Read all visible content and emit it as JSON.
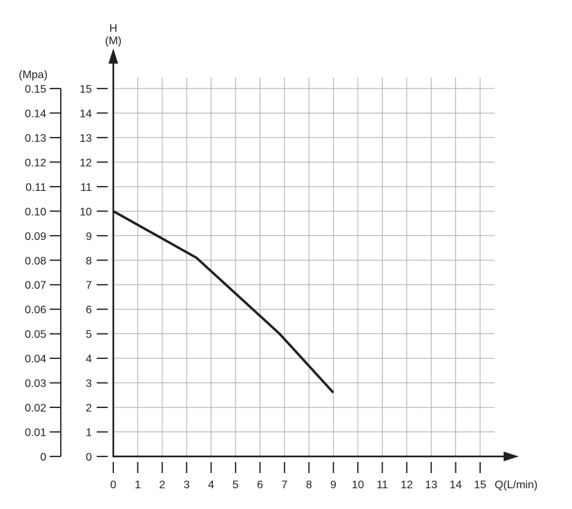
{
  "chart_data": {
    "type": "line",
    "title": "",
    "xlabel": "Q(L/min)",
    "ylabel": "H",
    "ylabel_unit": "(M)",
    "secondary_ylabel": "(Mpa)",
    "xlim": [
      0,
      15
    ],
    "ylim": [
      0,
      15
    ],
    "secondary_ylim": [
      0,
      0.15
    ],
    "grid": true,
    "x_ticks": [
      "0",
      "1",
      "2",
      "3",
      "4",
      "5",
      "6",
      "7",
      "8",
      "9",
      "10",
      "11",
      "12",
      "13",
      "14",
      "15"
    ],
    "y_ticks": [
      "0",
      "1",
      "2",
      "3",
      "4",
      "5",
      "6",
      "7",
      "8",
      "9",
      "10",
      "11",
      "12",
      "13",
      "14",
      "15"
    ],
    "secondary_y_ticks": [
      "0",
      "0.01",
      "0.02",
      "0.03",
      "0.04",
      "0.05",
      "0.06",
      "0.07",
      "0.08",
      "0.09",
      "0.10",
      "0.11",
      "0.12",
      "0.13",
      "0.14",
      "0.15"
    ],
    "series": [
      {
        "x": [
          0,
          3.4,
          6.8,
          9
        ],
        "y": [
          10,
          8.1,
          5.0,
          2.6
        ],
        "color": "#231f20"
      }
    ]
  }
}
